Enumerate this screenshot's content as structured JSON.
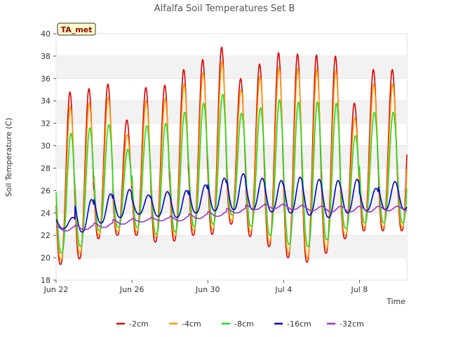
{
  "chart_data": {
    "type": "line",
    "title": "Alfalfa Soil Temperatures Set B",
    "xlabel": "Time",
    "ylabel": "Soil Temperature (C)",
    "badge": "TA_met",
    "x_range": [
      "2023-06-22",
      "2023-07-10T12:00"
    ],
    "xticks": [
      {
        "label": "Jun 22",
        "day": 0
      },
      {
        "label": "Jun 26",
        "day": 4
      },
      {
        "label": "Jun 30",
        "day": 8
      },
      {
        "label": "Jul 4",
        "day": 12
      },
      {
        "label": "Jul 8",
        "day": 16
      }
    ],
    "ylim": [
      18,
      40
    ],
    "yticks": [
      18,
      20,
      22,
      24,
      26,
      28,
      30,
      32,
      34,
      36,
      38,
      40
    ],
    "grid": "horizontal bands",
    "legend_position": "bottom",
    "series": [
      {
        "name": "-2cm",
        "color": "#dd0000",
        "daily_max": [
          34.8,
          35.1,
          35.5,
          32.3,
          35.2,
          35.4,
          36.8,
          37.7,
          38.8,
          36.0,
          37.3,
          38.3,
          38.2,
          38.1,
          38.0,
          33.8,
          36.8
        ],
        "daily_min": [
          19.4,
          19.9,
          21.7,
          22.0,
          22.0,
          21.4,
          21.5,
          22.0,
          22.1,
          23.0,
          21.9,
          21.0,
          20.0,
          19.6,
          20.4,
          21.7,
          22.4
        ]
      },
      {
        "name": "-4cm",
        "color": "#ff9900",
        "daily_max": [
          33.5,
          33.8,
          34.3,
          31.0,
          34.0,
          34.2,
          35.5,
          36.5,
          37.5,
          35.0,
          36.2,
          37.0,
          36.9,
          36.8,
          36.7,
          32.5,
          35.5
        ],
        "daily_min": [
          19.8,
          20.4,
          22.0,
          22.3,
          22.3,
          21.8,
          21.9,
          22.4,
          22.5,
          23.3,
          22.3,
          21.4,
          20.4,
          20.0,
          20.8,
          22.0,
          22.7
        ]
      },
      {
        "name": "-8cm",
        "color": "#22dd22",
        "daily_max": [
          31.1,
          31.6,
          31.9,
          29.7,
          31.8,
          32.0,
          33.0,
          33.8,
          34.6,
          32.9,
          33.4,
          34.1,
          33.9,
          33.9,
          33.8,
          30.9,
          33.0
        ],
        "daily_min": [
          20.4,
          21.0,
          22.4,
          22.7,
          22.7,
          22.1,
          22.3,
          22.8,
          23.0,
          23.8,
          22.8,
          22.0,
          21.2,
          21.0,
          21.6,
          22.6,
          23.1
        ]
      },
      {
        "name": "-16cm",
        "color": "#0000cc",
        "daily_max": [
          23.6,
          25.2,
          25.7,
          26.1,
          25.6,
          25.9,
          26.0,
          26.5,
          27.1,
          27.5,
          27.1,
          26.9,
          27.2,
          27.0,
          26.9,
          27.0,
          26.2,
          26.8
        ],
        "daily_min": [
          22.6,
          22.3,
          23.1,
          23.6,
          23.9,
          23.7,
          23.6,
          24.0,
          24.2,
          24.3,
          24.3,
          24.1,
          24.0,
          23.8,
          23.6,
          24.0,
          24.2,
          24.3
        ]
      },
      {
        "name": "-32cm",
        "color": "#9933cc",
        "daily_max": [
          22.8,
          22.9,
          23.1,
          23.4,
          23.5,
          23.6,
          23.7,
          23.9,
          24.1,
          24.4,
          24.7,
          24.8,
          24.7,
          24.6,
          24.6,
          24.6,
          24.6,
          24.6
        ],
        "daily_min": [
          22.4,
          22.5,
          22.7,
          23.0,
          23.2,
          23.3,
          23.3,
          23.5,
          23.7,
          24.0,
          24.3,
          24.4,
          24.3,
          24.2,
          24.1,
          24.1,
          24.1,
          24.2
        ]
      }
    ]
  }
}
